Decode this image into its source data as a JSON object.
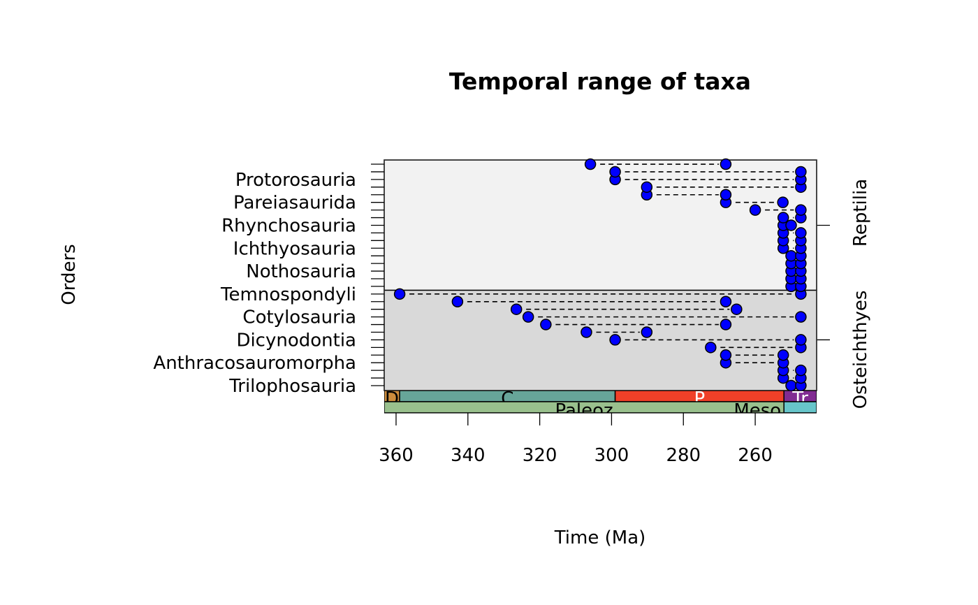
{
  "chart_data": {
    "type": "scatter",
    "title": "Temporal range of taxa",
    "xlabel": "Time (Ma)",
    "ylabel": "Orders",
    "xlim": [
      363.3,
      242.9
    ],
    "xticks": [
      360,
      340,
      320,
      300,
      280,
      260
    ],
    "xtick_labels": [
      "360",
      "340",
      "320",
      "300",
      "280",
      "260"
    ],
    "groups": [
      {
        "name": "Osteichthyes",
        "rows": [
          1,
          13
        ],
        "color": "#d9d9d9"
      },
      {
        "name": "Reptilia",
        "rows": [
          14,
          30
        ],
        "color": "#f2f2f2"
      }
    ],
    "rows": [
      {
        "label": "Trilophosauria",
        "fad": 250,
        "lad": 247.3
      },
      {
        "label": "",
        "fad": 252.2,
        "lad": 247.3
      },
      {
        "label": "",
        "fad": 252.2,
        "lad": 247.3
      },
      {
        "label": "Anthracosauromorpha",
        "fad": 268.2,
        "lad": 252.2
      },
      {
        "label": "",
        "fad": 268.2,
        "lad": 252.2
      },
      {
        "label": "",
        "fad": 272.4,
        "lad": 247.3
      },
      {
        "label": "Dicynodontia",
        "fad": 299,
        "lad": 247.3
      },
      {
        "label": "",
        "fad": 307,
        "lad": 290.2
      },
      {
        "label": "",
        "fad": 318.3,
        "lad": 268.2
      },
      {
        "label": "Cotylosauria",
        "fad": 323.2,
        "lad": 247.3
      },
      {
        "label": "",
        "fad": 326.5,
        "lad": 265.2
      },
      {
        "label": "",
        "fad": 342.9,
        "lad": 268.2
      },
      {
        "label": "Temnospondyli",
        "fad": 359,
        "lad": 247.3
      },
      {
        "label": "",
        "fad": 250,
        "lad": 247.3
      },
      {
        "label": "",
        "fad": 250,
        "lad": 247.3
      },
      {
        "label": "Nothosauria",
        "fad": 250,
        "lad": 247.3
      },
      {
        "label": "",
        "fad": 250,
        "lad": 247.3
      },
      {
        "label": "",
        "fad": 250,
        "lad": 247.3
      },
      {
        "label": "Ichthyosauria",
        "fad": 252.2,
        "lad": 247.3
      },
      {
        "label": "",
        "fad": 252.2,
        "lad": 247.3
      },
      {
        "label": "",
        "fad": 252.2,
        "lad": 247.3
      },
      {
        "label": "Rhynchosauria",
        "fad": 252.2,
        "lad": 250
      },
      {
        "label": "",
        "fad": 252.2,
        "lad": 247.3
      },
      {
        "label": "",
        "fad": 260,
        "lad": 247.3
      },
      {
        "label": "Pareiasaurida",
        "fad": 268.2,
        "lad": 252.3
      },
      {
        "label": "",
        "fad": 290.2,
        "lad": 268.2
      },
      {
        "label": "",
        "fad": 290.2,
        "lad": 247.3
      },
      {
        "label": "Protorosauria",
        "fad": 299,
        "lad": 247.3
      },
      {
        "label": "",
        "fad": 299,
        "lad": 247.3
      },
      {
        "label": "",
        "fad": 305.9,
        "lad": 268.2
      }
    ],
    "periods": [
      {
        "name": "D",
        "start": 363.3,
        "end": 359,
        "color": "#cc8c3c",
        "text_color": "#000000"
      },
      {
        "name": "C",
        "start": 359,
        "end": 299,
        "color": "#67a599",
        "text_color": "#000000"
      },
      {
        "name": "P",
        "start": 299,
        "end": 252,
        "color": "#f04028",
        "text_color": "#ffffff"
      },
      {
        "name": "Tr",
        "start": 252,
        "end": 242.9,
        "color": "#812b92",
        "text_color": "#ffffff"
      }
    ],
    "eras": [
      {
        "name": "Paleoz",
        "start": 363.3,
        "end": 252,
        "color": "#99c08d"
      },
      {
        "name": "Meso",
        "start": 252,
        "end": 242.9,
        "color": "#67c5ca"
      }
    ],
    "point_color": "#0000ff"
  }
}
